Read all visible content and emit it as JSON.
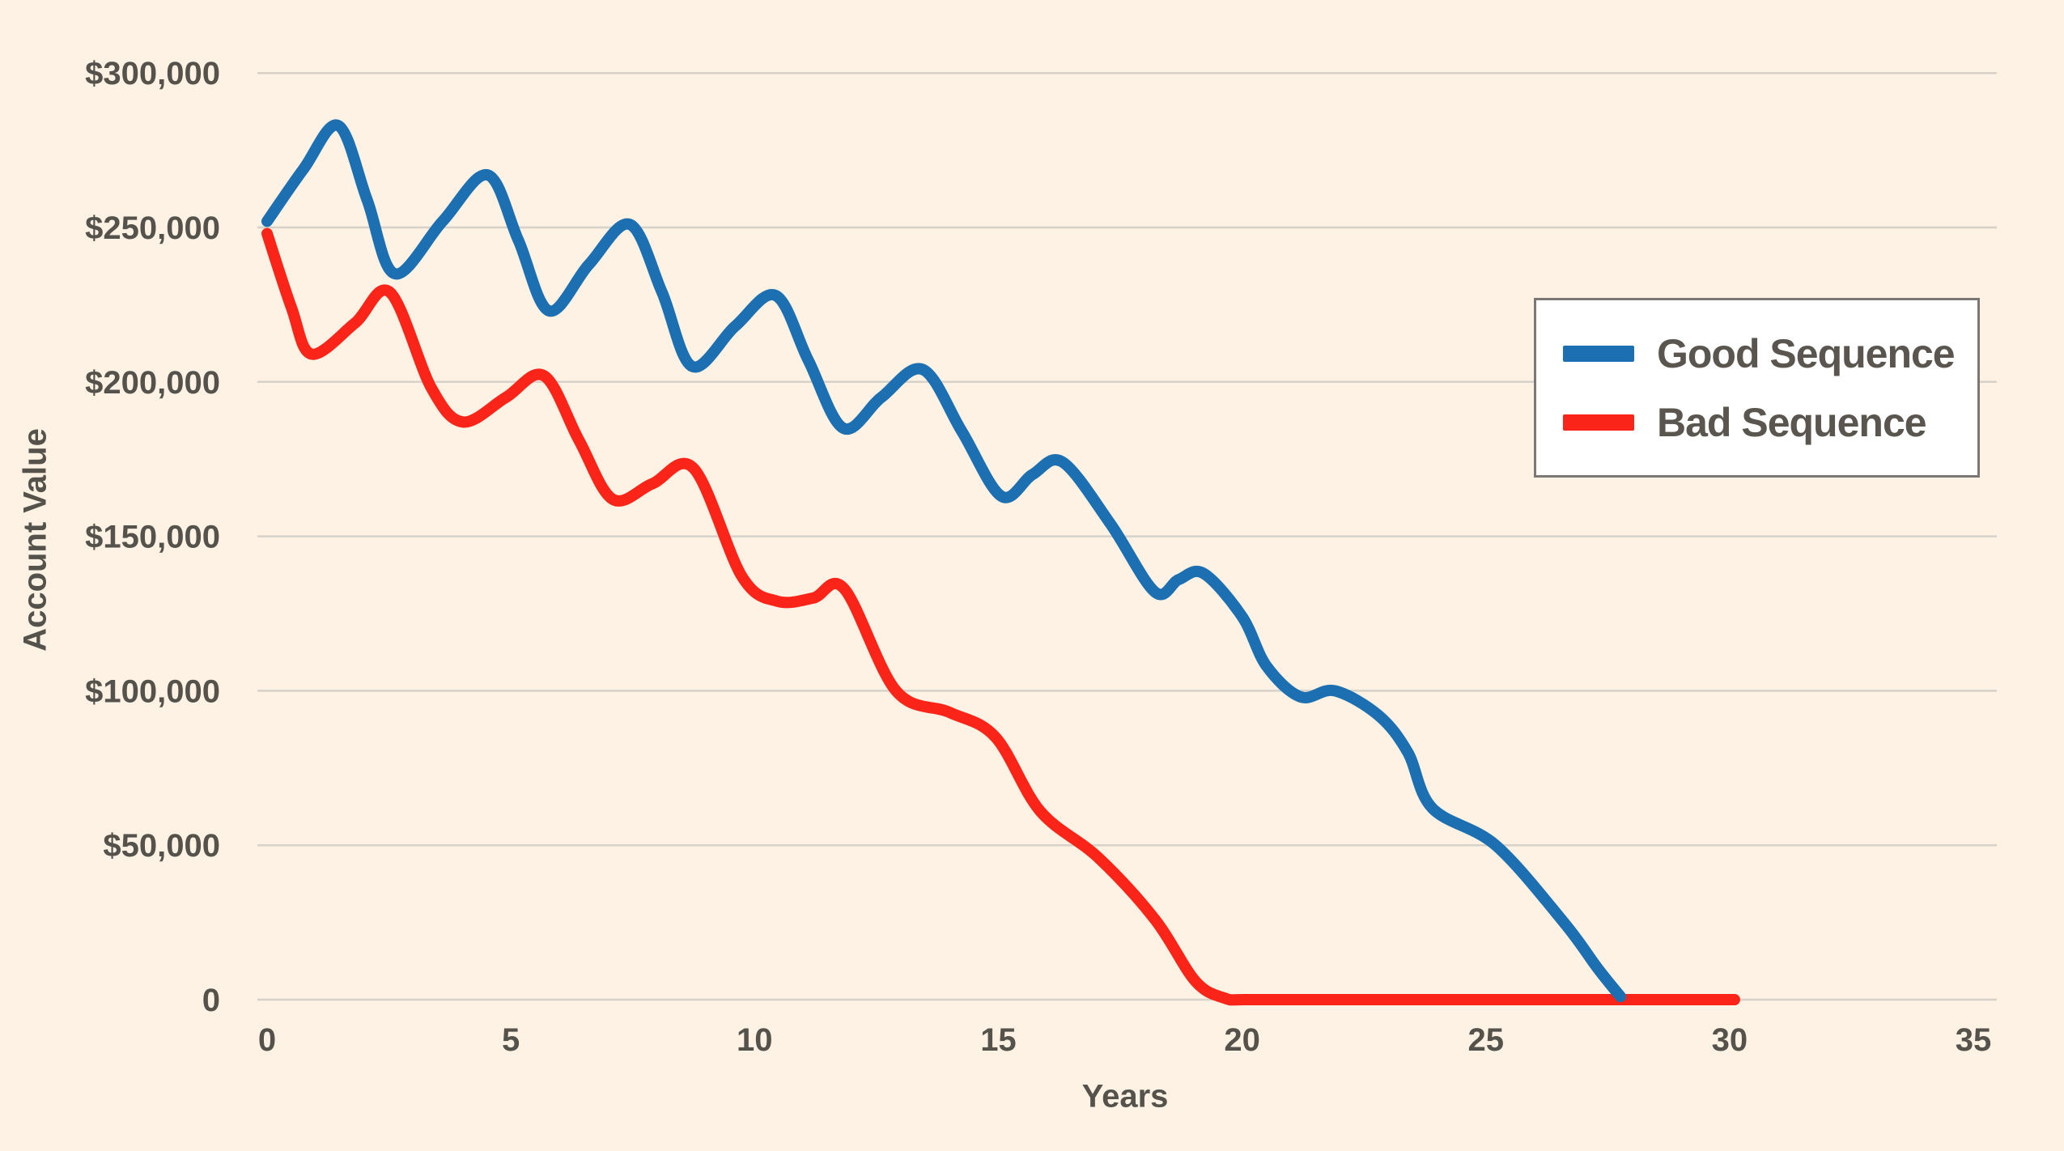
{
  "colors": {
    "background": "#fdf2e3",
    "gridline": "#d6d2ca",
    "axis_text": "#55524c",
    "legend_border": "#7b7774",
    "legend_background": "#ffffff",
    "good_sequence": "#1c6fb1",
    "bad_sequence": "#fa2418"
  },
  "chart_data": {
    "type": "line",
    "title": "",
    "xlabel": "Years",
    "ylabel": "Account Value",
    "xlim": [
      0,
      35
    ],
    "ylim": [
      0,
      300000
    ],
    "grid": true,
    "legend_position": "upper right",
    "x_ticks": [
      {
        "value": 0,
        "label": "0"
      },
      {
        "value": 5,
        "label": "5"
      },
      {
        "value": 10,
        "label": "10"
      },
      {
        "value": 15,
        "label": "15"
      },
      {
        "value": 20,
        "label": "20"
      },
      {
        "value": 25,
        "label": "25"
      },
      {
        "value": 30,
        "label": "30"
      },
      {
        "value": 35,
        "label": "35"
      }
    ],
    "y_ticks": [
      {
        "value": 300000,
        "label": "$300,000"
      },
      {
        "value": 250000,
        "label": "$250,000"
      },
      {
        "value": 200000,
        "label": "$200,000"
      },
      {
        "value": 150000,
        "label": "$150,000"
      },
      {
        "value": 100000,
        "label": "$100,000"
      },
      {
        "value": 50000,
        "label": "$50,000"
      },
      {
        "value": 0,
        "label": "0"
      }
    ],
    "series": [
      {
        "name": "Good Sequence",
        "color": "#1c6fb1",
        "points": [
          [
            0,
            252000
          ],
          [
            0.75,
            269000
          ],
          [
            1.46,
            283000
          ],
          [
            2.05,
            259000
          ],
          [
            2.62,
            235000
          ],
          [
            3.6,
            252000
          ],
          [
            4.52,
            267000
          ],
          [
            5.15,
            246000
          ],
          [
            5.78,
            223000
          ],
          [
            6.6,
            238000
          ],
          [
            7.44,
            251000
          ],
          [
            8.1,
            229000
          ],
          [
            8.72,
            205000
          ],
          [
            9.6,
            218000
          ],
          [
            10.43,
            228000
          ],
          [
            11.1,
            207000
          ],
          [
            11.82,
            185000
          ],
          [
            12.6,
            195000
          ],
          [
            13.45,
            204000
          ],
          [
            14.25,
            184000
          ],
          [
            15.06,
            163000
          ],
          [
            15.7,
            170000
          ],
          [
            16.32,
            174000
          ],
          [
            17.3,
            154000
          ],
          [
            18.21,
            132000
          ],
          [
            18.7,
            136000
          ],
          [
            19.21,
            138000
          ],
          [
            20.0,
            124000
          ],
          [
            20.5,
            108000
          ],
          [
            21.2,
            98000
          ],
          [
            21.9,
            100000
          ],
          [
            22.8,
            92000
          ],
          [
            23.4,
            80000
          ],
          [
            23.9,
            62000
          ],
          [
            25.2,
            50000
          ],
          [
            26.6,
            25000
          ],
          [
            27.3,
            10000
          ],
          [
            27.76,
            1000
          ]
        ]
      },
      {
        "name": "Bad Sequence",
        "color": "#fa2418",
        "points": [
          [
            0,
            248000
          ],
          [
            0.5,
            224000
          ],
          [
            0.91,
            209000
          ],
          [
            1.8,
            219000
          ],
          [
            2.52,
            229000
          ],
          [
            3.37,
            198000
          ],
          [
            4.02,
            187000
          ],
          [
            4.9,
            195000
          ],
          [
            5.68,
            202000
          ],
          [
            6.4,
            181000
          ],
          [
            7.09,
            162000
          ],
          [
            7.9,
            167000
          ],
          [
            8.75,
            172000
          ],
          [
            9.74,
            137000
          ],
          [
            10.46,
            129000
          ],
          [
            11.2,
            130000
          ],
          [
            11.84,
            133000
          ],
          [
            12.9,
            100000
          ],
          [
            14.0,
            93000
          ],
          [
            14.94,
            85000
          ],
          [
            15.86,
            61000
          ],
          [
            17.05,
            46000
          ],
          [
            18.21,
            26000
          ],
          [
            19.04,
            6000
          ],
          [
            19.64,
            500
          ],
          [
            20.1,
            0
          ],
          [
            22,
            0
          ],
          [
            25,
            0
          ],
          [
            28,
            0
          ],
          [
            30.1,
            0
          ]
        ]
      }
    ]
  }
}
